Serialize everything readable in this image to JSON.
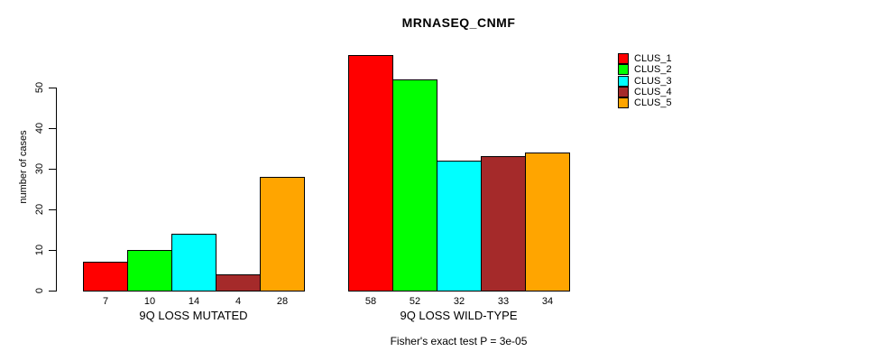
{
  "chart_data": {
    "type": "bar",
    "title": "MRNASEQ_CNMF",
    "ylabel": "number of cases",
    "ylim": [
      0,
      58
    ],
    "yticks": [
      0,
      10,
      20,
      30,
      40,
      50
    ],
    "grid": false,
    "legend_position": "right",
    "categories": [
      "9Q LOSS MUTATED",
      "9Q LOSS WILD-TYPE"
    ],
    "series": [
      {
        "name": "CLUS_1",
        "color": "#FF0000",
        "values": [
          7,
          58
        ]
      },
      {
        "name": "CLUS_2",
        "color": "#00FF00",
        "values": [
          10,
          52
        ]
      },
      {
        "name": "CLUS_3",
        "color": "#00FFFF",
        "values": [
          14,
          32
        ]
      },
      {
        "name": "CLUS_4",
        "color": "#A52A2A",
        "values": [
          4,
          33
        ]
      },
      {
        "name": "CLUS_5",
        "color": "#FFA500",
        "values": [
          28,
          34
        ]
      }
    ],
    "bar_value_labels": [
      [
        7,
        10,
        14,
        4,
        28
      ],
      [
        58,
        52,
        32,
        33,
        34
      ]
    ],
    "caption": "Fisher's exact test P = 3e-05"
  }
}
